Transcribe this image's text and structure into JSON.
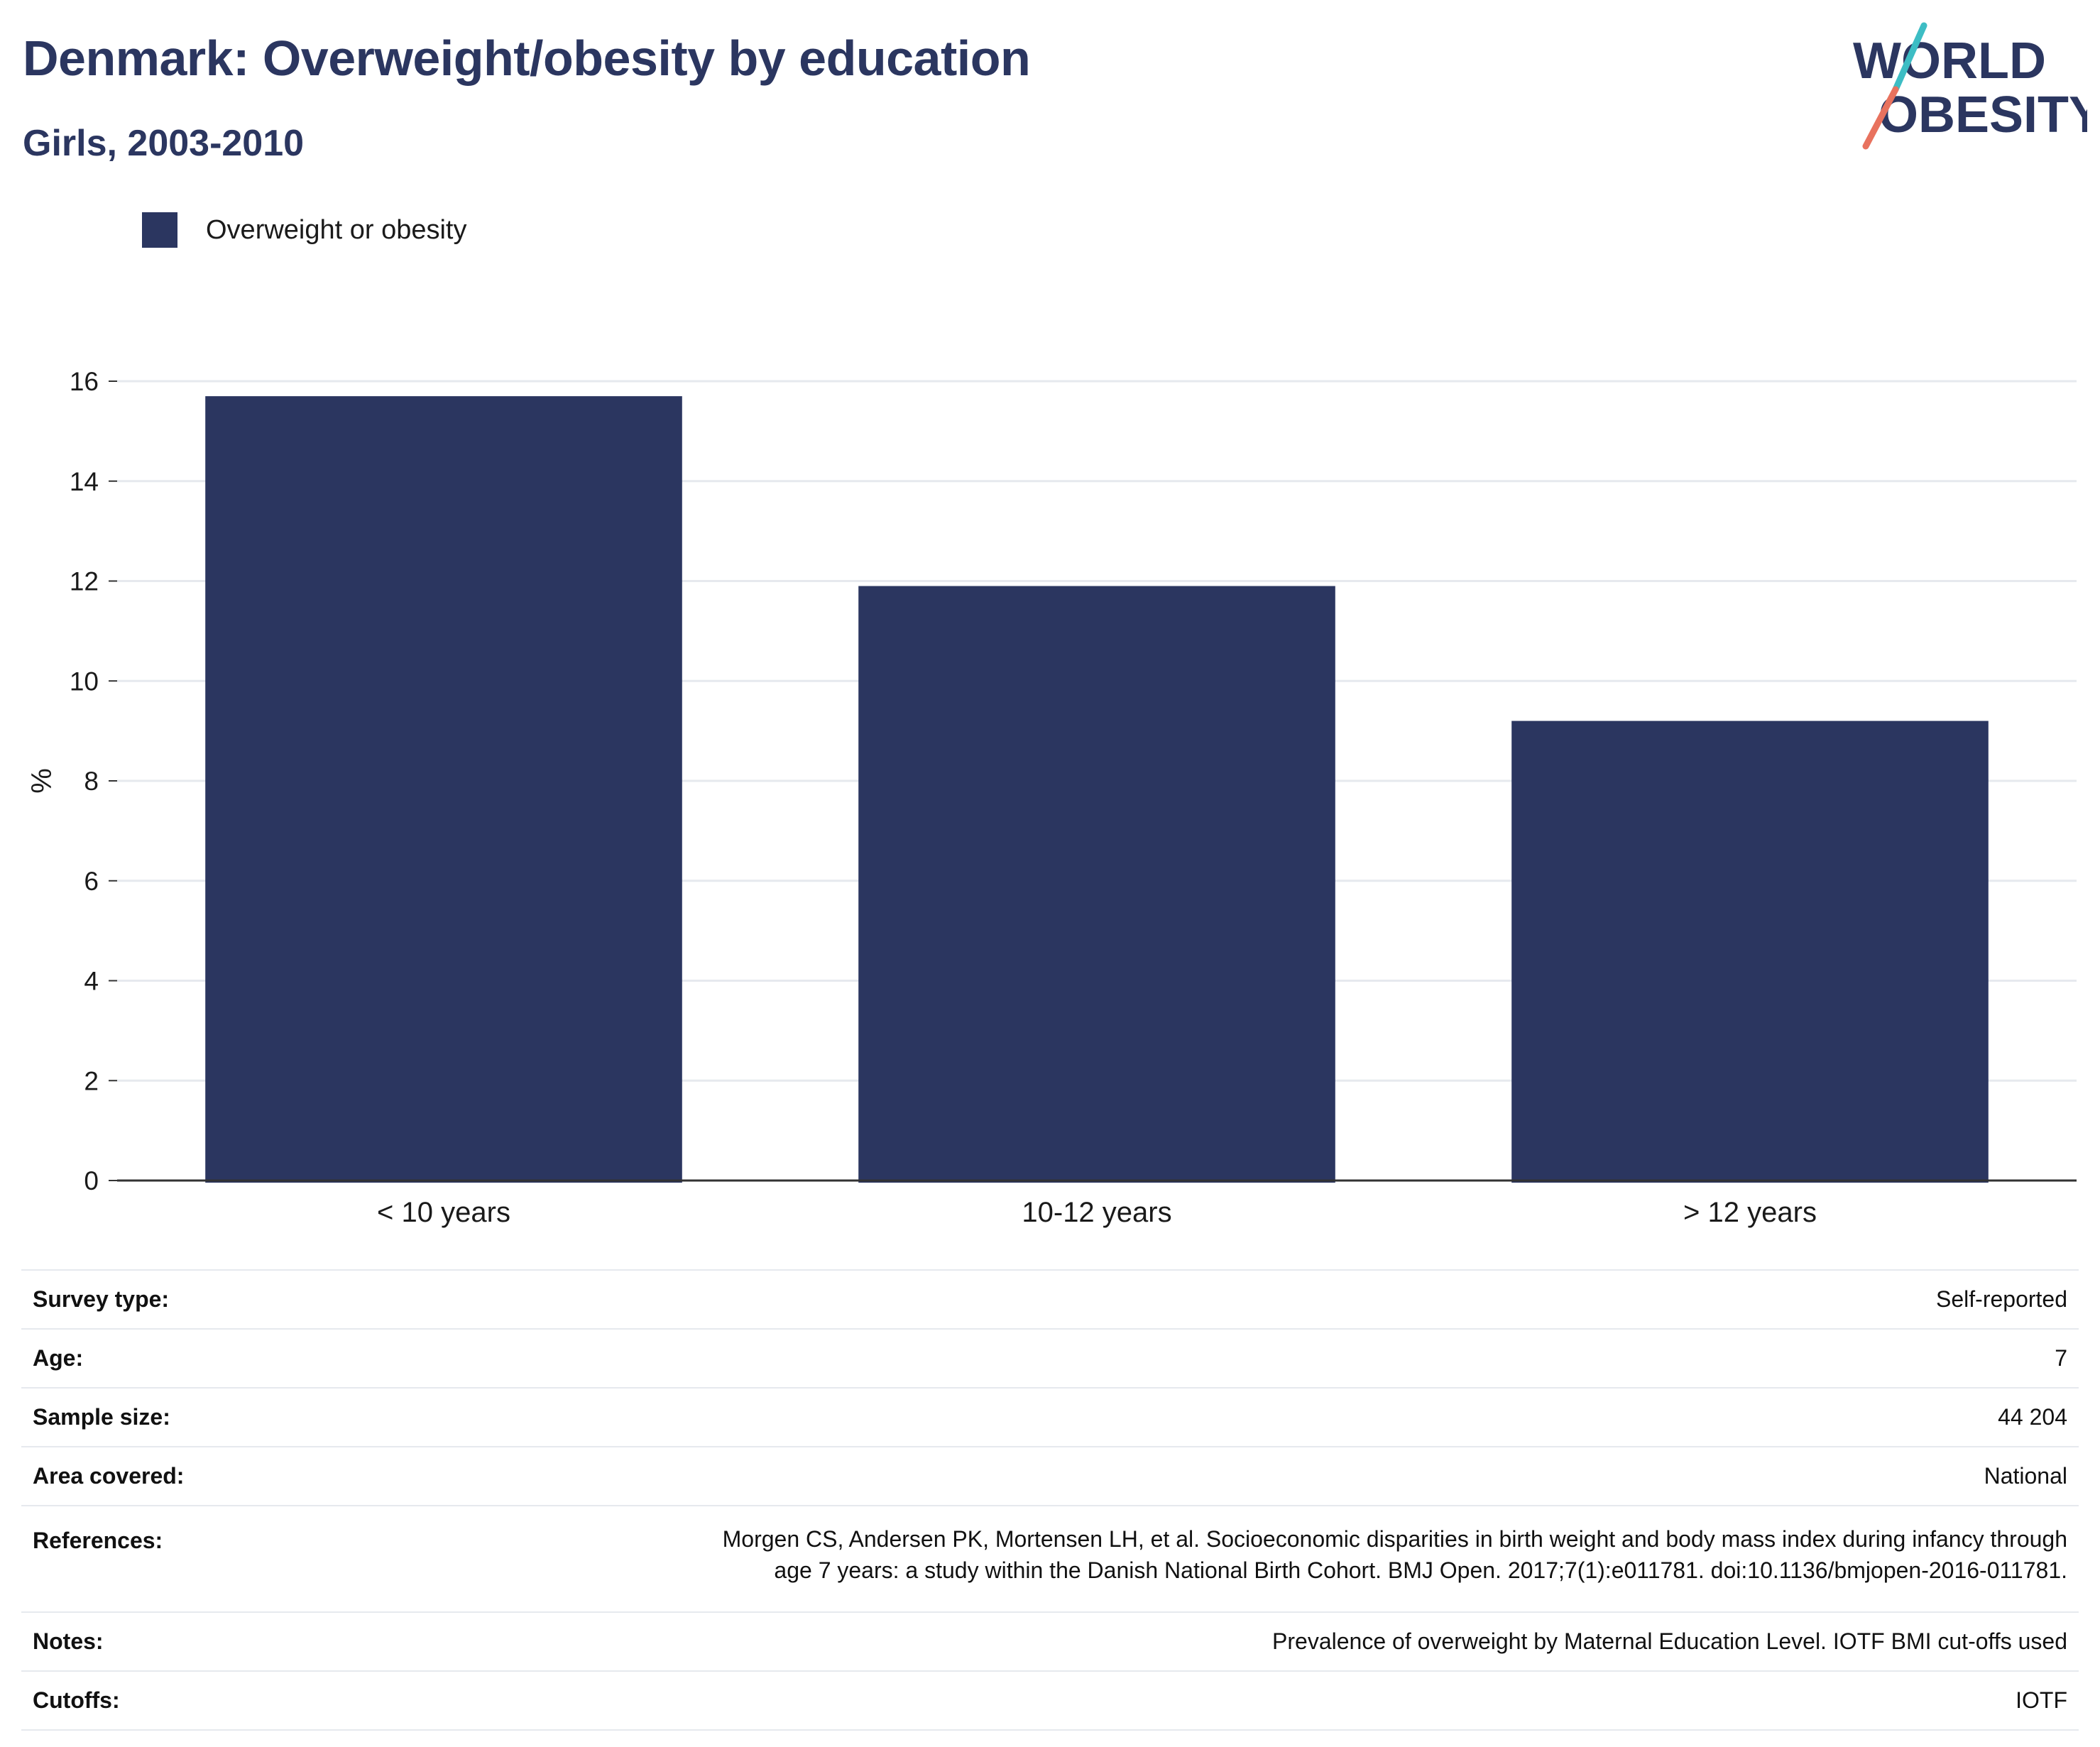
{
  "header": {
    "title": "Denmark: Overweight/obesity by education",
    "subtitle": "Girls, 2003-2010"
  },
  "logo": {
    "line1": "WORLD",
    "line2": "OBESITY",
    "colors": {
      "text": "#2b3660",
      "slash_top": "#3dbdc4",
      "slash_bottom": "#e8725e"
    }
  },
  "legend": {
    "label": "Overweight or obesity"
  },
  "colors": {
    "bar": "#2b3660",
    "grid": "#e6e9ee",
    "axis": "#333333"
  },
  "chart_data": {
    "type": "bar",
    "categories": [
      "< 10 years",
      "10-12 years",
      "> 12 years"
    ],
    "series": [
      {
        "name": "Overweight or obesity",
        "values": [
          15.7,
          11.9,
          9.2
        ]
      }
    ],
    "ylabel": "%",
    "ylim": [
      0,
      16
    ],
    "yticks": [
      0,
      2,
      4,
      6,
      8,
      10,
      12,
      14,
      16
    ],
    "grid": true,
    "legend_position": "top-left"
  },
  "meta": [
    {
      "label": "Survey type:",
      "value": "Self-reported"
    },
    {
      "label": "Age:",
      "value": "7"
    },
    {
      "label": "Sample size:",
      "value": "44 204"
    },
    {
      "label": "Area covered:",
      "value": "National"
    },
    {
      "label": "References:",
      "value_lines": [
        "Morgen CS, Andersen PK, Mortensen LH, et al. Socioeconomic disparities in birth weight and body mass index during infancy through",
        "age 7 years: a study within the Danish National Birth Cohort. BMJ Open. 2017;7(1):e011781. doi:10.1136/bmjopen-2016-011781."
      ]
    },
    {
      "label": "Notes:",
      "value": "Prevalence of overweight by Maternal Education Level. IOTF BMI cut-offs used"
    },
    {
      "label": "Cutoffs:",
      "value": "IOTF"
    }
  ]
}
